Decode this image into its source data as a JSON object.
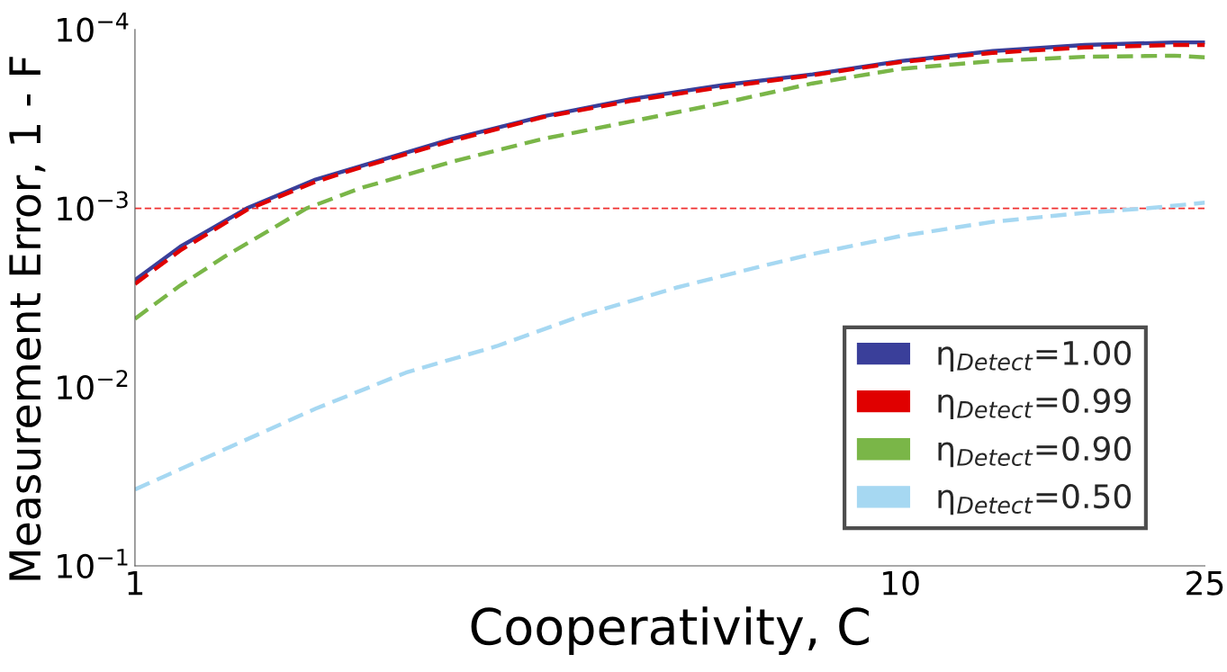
{
  "chart_data": {
    "type": "line",
    "xlabel": "Cooperativity, C",
    "ylabel": "Measurement Error, 1 - F",
    "log": "xy",
    "grid": false,
    "legend": "bottom right",
    "xlim": [
      1,
      25
    ],
    "xticks": [
      1,
      10,
      25
    ],
    "ylim": [
      0.1,
      0.0001
    ],
    "yticks": [
      {
        "value": 0.0001,
        "label": "10$^{−4}$"
      },
      {
        "value": 0.001,
        "label": "10$^{−3}$"
      },
      {
        "value": 0.01,
        "label": "10$^{−2}$"
      },
      {
        "value": 0.1,
        "label": "10$^{−1}$"
      }
    ],
    "ref_lines": [
      {
        "axis": "y",
        "value": 0.001,
        "label": null,
        "color": "#f03030",
        "line_style": "dashed"
      }
    ],
    "series": [
      {
        "name": "η$_{Detect}$=1.00",
        "color": "#3a3f9a",
        "line_style": "solid",
        "x": [
          1,
          1.146,
          1.4,
          1.722,
          1.973,
          2.59,
          3.4,
          4.46,
          5.85,
          7.68,
          10,
          13.2,
          17.4,
          22.8,
          25
        ],
        "values": [
          0.00252,
          0.00164,
          0.001,
          0.00069,
          0.00058,
          0.00041,
          0.000307,
          0.000244,
          0.000205,
          0.000178,
          0.00015,
          0.000132,
          0.000122,
          0.000118,
          0.000118
        ]
      },
      {
        "name": "η$_{Detect}$=0.99",
        "color": "#e00000",
        "line_style": "dashed",
        "x": [
          1,
          1.146,
          1.4,
          1.722,
          1.973,
          2.59,
          3.4,
          4.46,
          5.85,
          7.68,
          10,
          13.2,
          17.4,
          22.8,
          25
        ],
        "values": [
          0.00265,
          0.00172,
          0.00102,
          0.00071,
          0.00059,
          0.00042,
          0.00031,
          0.00025,
          0.00021,
          0.00018,
          0.000152,
          0.000135,
          0.000126,
          0.000122,
          0.000122
        ]
      },
      {
        "name": "η$_{Detect}$=0.90",
        "color": "#7ab648",
        "line_style": "dashed",
        "x": [
          1,
          1.146,
          1.313,
          1.676,
          1.973,
          2.59,
          3.4,
          4.46,
          5.85,
          7.68,
          10,
          13.2,
          17.4,
          22.8,
          25
        ],
        "values": [
          0.00415,
          0.0027,
          0.00185,
          0.001,
          0.00077,
          0.00055,
          0.00041,
          0.000326,
          0.000258,
          0.0002,
          0.000166,
          0.00015,
          0.000142,
          0.00014,
          0.000143
        ]
      },
      {
        "name": "η$_{Detect}$=0.50",
        "color": "#a6d8f2",
        "line_style": "dashed",
        "x": [
          1,
          1.313,
          1.722,
          2.26,
          2.97,
          3.89,
          5.11,
          6.7,
          7.68,
          10,
          13.2,
          17.4,
          21,
          25
        ],
        "values": [
          0.0374,
          0.0222,
          0.0132,
          0.0083,
          0.0059,
          0.0039,
          0.00277,
          0.00207,
          0.0018,
          0.00143,
          0.00119,
          0.00106,
          0.001,
          0.00093
        ]
      }
    ]
  }
}
